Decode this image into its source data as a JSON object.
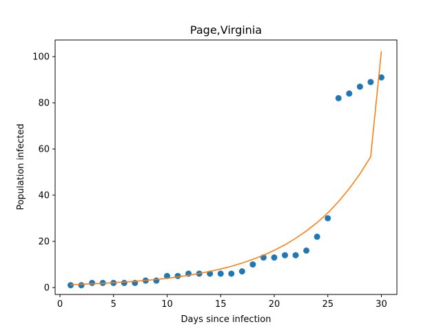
{
  "chart_data": {
    "type": "scatter",
    "title": "Page,Virginia",
    "xlabel": "Days since infection",
    "ylabel": "Population infected",
    "xlim": [
      -0.45,
      31.45
    ],
    "ylim": [
      -3.0,
      107.2
    ],
    "xticks": [
      0,
      5,
      10,
      15,
      20,
      25,
      30
    ],
    "yticks": [
      0,
      20,
      40,
      60,
      80,
      100
    ],
    "grid": false,
    "colors": {
      "points": "#1f77b4",
      "fit": "#ff7f0e"
    },
    "series": [
      {
        "type": "scatter",
        "x": [
          1,
          2,
          3,
          4,
          5,
          6,
          7,
          8,
          9,
          10,
          11,
          12,
          13,
          14,
          15,
          16,
          17,
          18,
          19,
          20,
          21,
          22,
          23,
          24,
          25,
          26,
          27,
          28,
          29,
          30
        ],
        "y": [
          1,
          1,
          2,
          2,
          2,
          2,
          2,
          3,
          3,
          5,
          5,
          6,
          6,
          6,
          6,
          6,
          7,
          10,
          13,
          13,
          14,
          14,
          16,
          22,
          30,
          82,
          84,
          87,
          89,
          91
        ]
      },
      {
        "type": "line",
        "x": [
          1,
          2,
          3,
          4,
          5,
          6,
          7,
          8,
          9,
          10,
          11,
          12,
          13,
          14,
          15,
          16,
          17,
          18,
          19,
          20,
          21,
          22,
          23,
          24,
          25,
          26,
          27,
          28,
          29,
          30
        ],
        "y": [
          1.2,
          1.4,
          1.6,
          1.8,
          2.1,
          2.4,
          2.7,
          3.1,
          3.5,
          4.0,
          4.6,
          5.3,
          6.1,
          7.0,
          8.0,
          9.2,
          10.6,
          12.2,
          14.0,
          16.1,
          18.5,
          21.3,
          24.5,
          28.1,
          32.3,
          37.2,
          42.8,
          49.2,
          56.6,
          102.3
        ]
      }
    ]
  }
}
